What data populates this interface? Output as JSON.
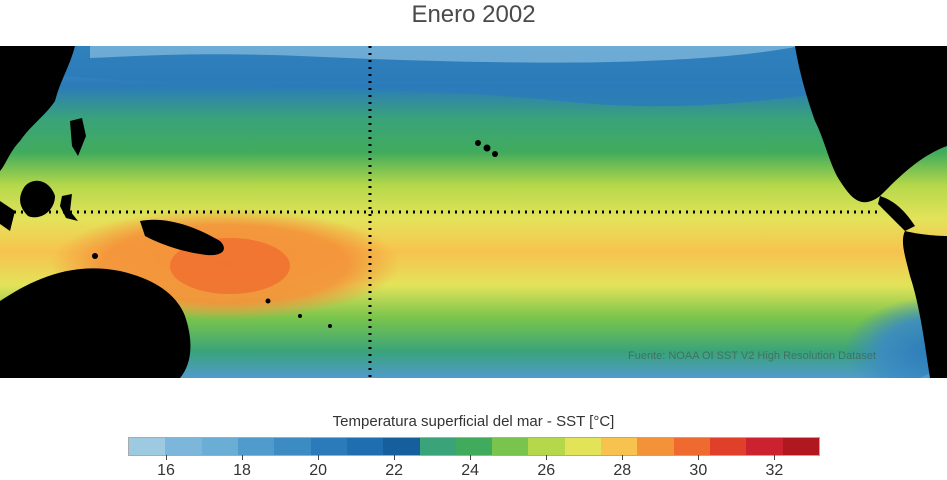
{
  "title": "Enero 2002",
  "source": "Fuente: NOAA OI SST V2 High Resolution Dataset",
  "colorbar": {
    "label": "Temperatura superficial del mar - SST  [°C]",
    "colors": [
      "#9ecae1",
      "#7db6db",
      "#6aaed6",
      "#4f9bcc",
      "#3c8bc3",
      "#2b7bba",
      "#1f6fb0",
      "#155f9c",
      "#3aa37a",
      "#41ab5d",
      "#78c44c",
      "#b5d84a",
      "#e3e35a",
      "#f7c34e",
      "#f4923a",
      "#ee6a2e",
      "#e0402a",
      "#cc2230",
      "#b1171f"
    ],
    "tick_values": [
      16,
      18,
      20,
      22,
      24,
      26,
      28,
      30,
      32
    ],
    "tick_labels": [
      "16",
      "18",
      "20",
      "22",
      "24",
      "26",
      "28",
      "30",
      "32"
    ]
  },
  "map": {
    "description_colors": {
      "land": "#000000",
      "reference_lines": "#000000"
    }
  }
}
